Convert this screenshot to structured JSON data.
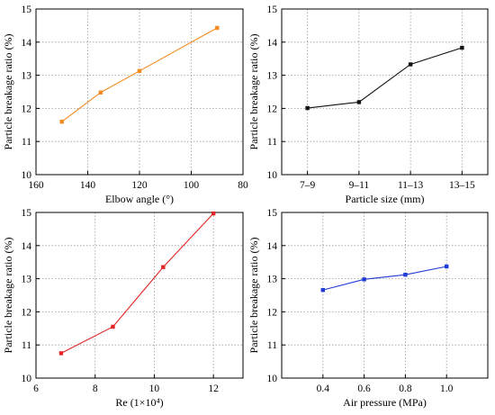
{
  "colors": {
    "grid": "#9a9a9a",
    "frame": "#000000"
  },
  "chart_data": [
    {
      "type": "line",
      "title": "",
      "xlabel": "Elbow angle (°)",
      "ylabel": "Particle breakage ratio (%)",
      "x_reversed": true,
      "xlim": [
        160,
        80
      ],
      "ylim": [
        10,
        15
      ],
      "x_ticks": [
        160,
        140,
        120,
        100,
        80
      ],
      "x_tick_labels": [
        "160",
        "140",
        "120",
        "100",
        "80"
      ],
      "y_ticks": [
        10,
        11,
        12,
        13,
        14,
        15
      ],
      "y_tick_labels": [
        "10",
        "11",
        "12",
        "13",
        "14",
        "15"
      ],
      "grid": true,
      "series": [
        {
          "color": "#f5891f",
          "x": [
            150,
            135,
            120,
            90
          ],
          "y": [
            11.6,
            12.48,
            13.13,
            14.43
          ]
        }
      ]
    },
    {
      "type": "line",
      "title": "",
      "xlabel": "Particle size (mm)",
      "ylabel": "Particle breakage ratio (%)",
      "categories": [
        "7–9",
        "9–11",
        "11–13",
        "13–15"
      ],
      "ylim": [
        10,
        15
      ],
      "y_ticks": [
        10,
        11,
        12,
        13,
        14,
        15
      ],
      "y_tick_labels": [
        "10",
        "11",
        "12",
        "13",
        "14",
        "15"
      ],
      "grid": true,
      "series": [
        {
          "color": "#111111",
          "values": [
            12.01,
            12.19,
            13.33,
            13.83
          ]
        }
      ]
    },
    {
      "type": "line",
      "title": "",
      "xlabel": "Re (1×10⁴)",
      "ylabel": "Particle breakage ratio (%)",
      "xlim": [
        6,
        13
      ],
      "ylim": [
        10,
        15
      ],
      "x_ticks": [
        6,
        8,
        10,
        12
      ],
      "x_tick_labels": [
        "6",
        "8",
        "10",
        "12"
      ],
      "y_ticks": [
        10,
        11,
        12,
        13,
        14,
        15
      ],
      "y_tick_labels": [
        "10",
        "11",
        "12",
        "13",
        "14",
        "15"
      ],
      "grid": true,
      "series": [
        {
          "color": "#e32626",
          "x": [
            6.85,
            8.6,
            10.3,
            12.0
          ],
          "y": [
            10.75,
            11.55,
            13.35,
            14.97
          ]
        }
      ]
    },
    {
      "type": "line",
      "title": "",
      "xlabel": "Air pressure (MPa)",
      "ylabel": "Particle breakage ratio (%)",
      "xlim": [
        0.2,
        1.2
      ],
      "ylim": [
        10,
        15
      ],
      "x_ticks": [
        0.4,
        0.6,
        0.8,
        1.0
      ],
      "x_tick_labels": [
        "0.4",
        "0.6",
        "0.8",
        "1.0"
      ],
      "y_ticks": [
        10,
        11,
        12,
        13,
        14,
        15
      ],
      "y_tick_labels": [
        "10",
        "11",
        "12",
        "13",
        "14",
        "15"
      ],
      "grid": true,
      "series": [
        {
          "color": "#1f3ad6",
          "x": [
            0.4,
            0.6,
            0.8,
            1.0
          ],
          "y": [
            12.66,
            12.98,
            13.12,
            13.37
          ]
        }
      ]
    }
  ]
}
